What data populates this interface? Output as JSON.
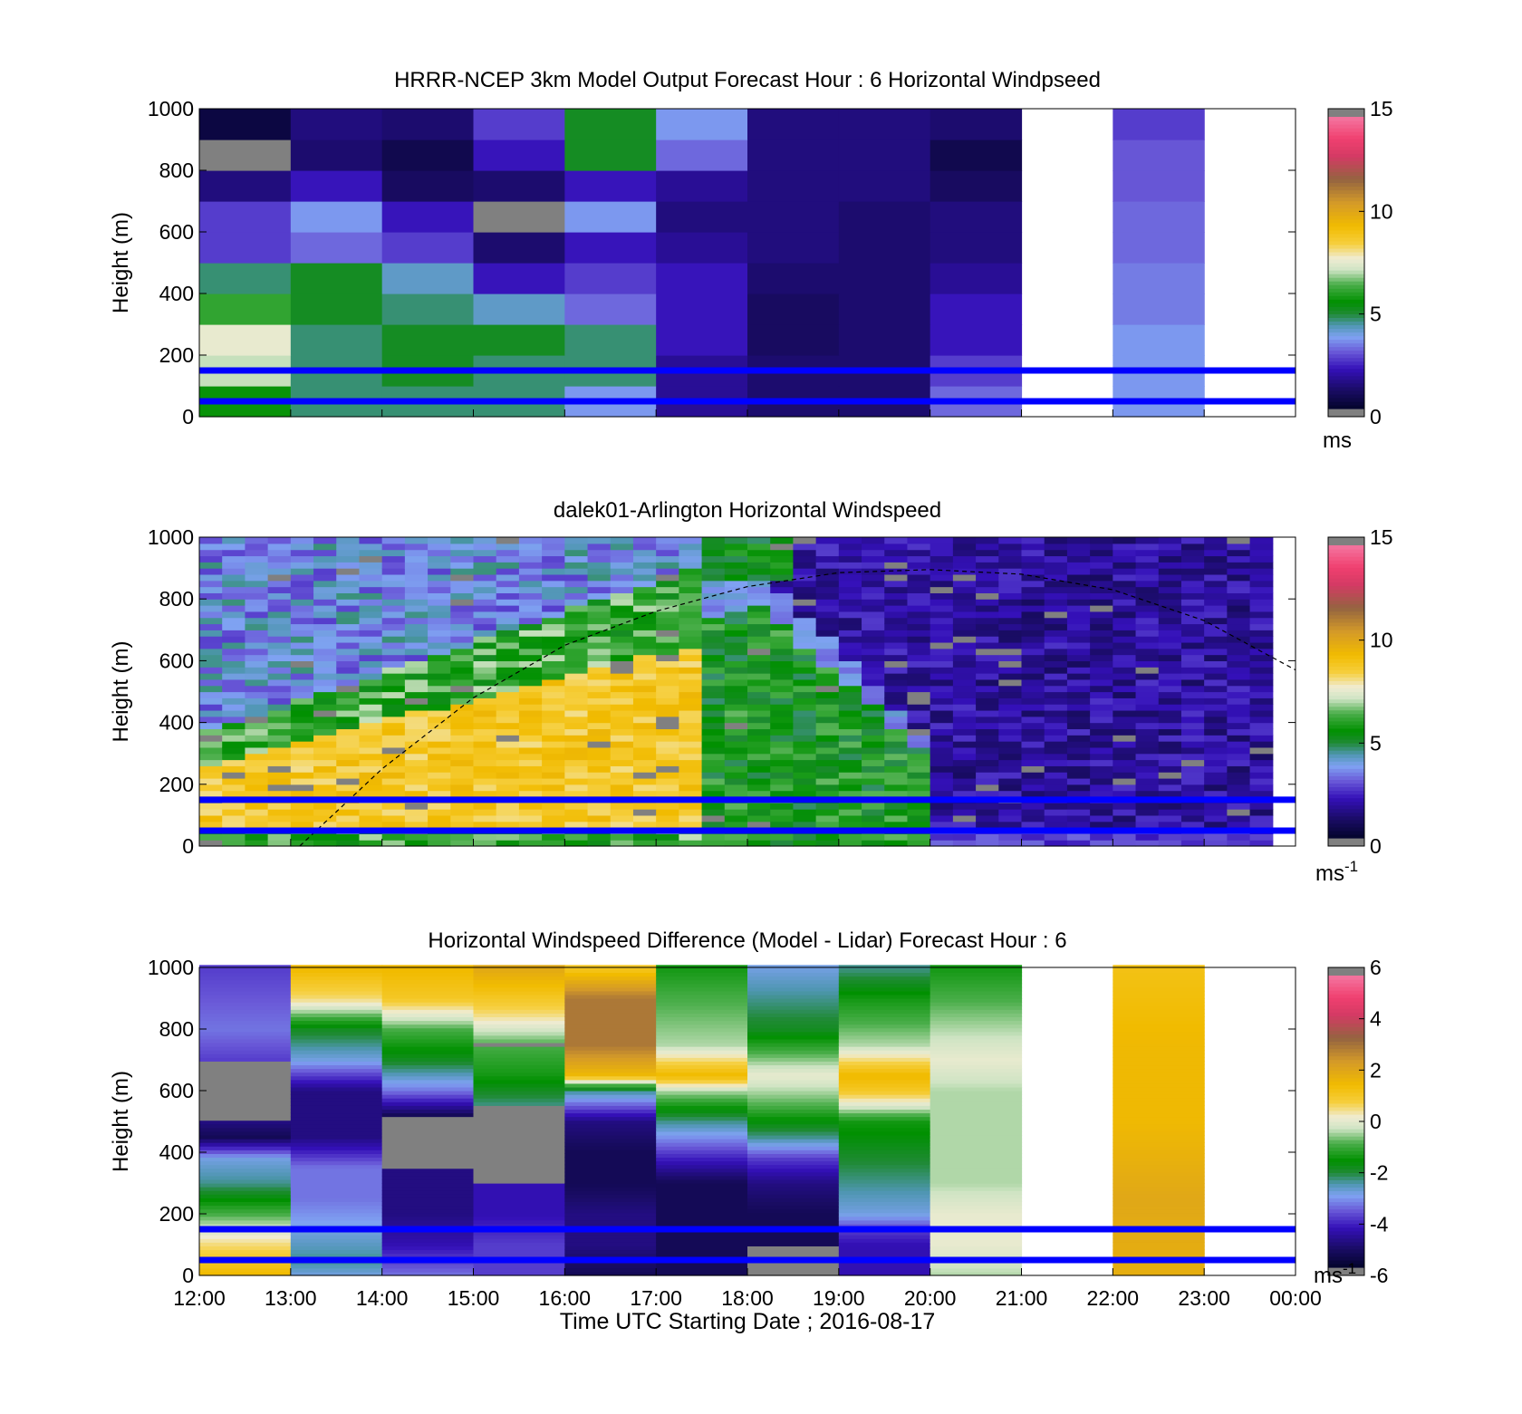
{
  "figure": {
    "x_tick_labels": [
      "12:00",
      "13:00",
      "14:00",
      "15:00",
      "16:00",
      "17:00",
      "18:00",
      "19:00",
      "20:00",
      "21:00",
      "22:00",
      "23:00",
      "00:00"
    ],
    "xlabel": "Time UTC  Starting Date ; 2016-08-17",
    "reference_lines_height_m": [
      50,
      150
    ],
    "colors": {
      "reference_line": "#0000ff",
      "missing_data": "#808080",
      "no_data": "#ffffff"
    }
  },
  "chart_data": [
    {
      "id": "model",
      "type": "heatmap",
      "title": "HRRR-NCEP 3km Model Output   Forecast Hour : 6 Horizontal Windpseed",
      "ylabel": "Height (m)",
      "y_ticks": [
        "0",
        "200",
        "400",
        "600",
        "800",
        "1000"
      ],
      "xlim": [
        "12:00",
        "00:00"
      ],
      "ylim": [
        0,
        1000
      ],
      "colorbar": {
        "unit": "ms",
        "unit_sup": "",
        "ticks": [
          "0",
          "5",
          "10",
          "15"
        ],
        "range": [
          0,
          15
        ]
      },
      "hour_columns": [
        "12:00",
        "13:00",
        "14:00",
        "15:00",
        "16:00",
        "17:00",
        "18:00",
        "19:00",
        "20:00",
        "21:00",
        "22:00",
        "23:00"
      ],
      "cell_height_m": 100,
      "values": [
        [
          5.5,
          4.5,
          4.5,
          4.5,
          3.5,
          1.5,
          1.0,
          1.0,
          3.0,
          null,
          3.5,
          null
        ],
        [
          7.0,
          4.5,
          5.0,
          4.5,
          4.5,
          1.5,
          1.0,
          1.0,
          2.5,
          null,
          3.5,
          null
        ],
        [
          7.5,
          4.5,
          5.0,
          5.0,
          4.5,
          2.0,
          0.8,
          1.0,
          2.0,
          null,
          3.5,
          null
        ],
        [
          6.0,
          5.0,
          4.5,
          4.0,
          3.0,
          2.0,
          0.8,
          1.0,
          2.0,
          null,
          3.2,
          null
        ],
        [
          4.5,
          5.0,
          4.0,
          2.0,
          2.5,
          2.0,
          1.0,
          1.0,
          1.5,
          null,
          3.2,
          null
        ],
        [
          2.5,
          3.0,
          2.5,
          1.0,
          2.0,
          1.5,
          1.2,
          1.0,
          1.2,
          null,
          3.0,
          null
        ],
        [
          2.5,
          3.5,
          2.0,
          -1,
          3.5,
          1.2,
          1.2,
          1.0,
          1.2,
          null,
          3.0,
          null
        ],
        [
          1.2,
          2.0,
          0.8,
          1.0,
          2.0,
          1.5,
          1.2,
          1.2,
          0.8,
          null,
          2.8,
          null
        ],
        [
          -1,
          1.0,
          0.5,
          2.0,
          5.0,
          3.0,
          1.2,
          1.2,
          0.5,
          null,
          2.8,
          null
        ],
        [
          0.3,
          1.2,
          1.0,
          2.5,
          5.0,
          3.5,
          1.2,
          1.2,
          1.0,
          null,
          2.5,
          null
        ]
      ]
    },
    {
      "id": "lidar",
      "type": "heatmap",
      "title": "dalek01-Arlington  Horizontal Windspeed",
      "ylabel": "Height (m)",
      "y_ticks": [
        "0",
        "200",
        "400",
        "600",
        "800",
        "1000"
      ],
      "xlim": [
        "12:00",
        "00:00"
      ],
      "ylim": [
        0,
        1000
      ],
      "colorbar": {
        "unit": "ms",
        "unit_sup": "-1",
        "ticks": [
          "0",
          "5",
          "10",
          "15"
        ],
        "range": [
          0,
          15
        ]
      },
      "approx_sample_interval_min": 15,
      "transition_curve": {
        "style": "dashed",
        "x_hours": [
          13.1,
          14,
          15,
          16,
          17,
          18,
          19,
          20,
          21,
          22,
          23,
          24
        ],
        "y_m": [
          0,
          250,
          480,
          650,
          760,
          840,
          885,
          895,
          880,
          830,
          730,
          570
        ]
      }
    },
    {
      "id": "difference",
      "type": "heatmap",
      "title": "Horizontal Windspeed Difference (Model - Lidar) Forecast Hour : 6",
      "ylabel": "Height (m)",
      "y_ticks": [
        "0",
        "200",
        "400",
        "600",
        "800",
        "1000"
      ],
      "xlim": [
        "12:00",
        "00:00"
      ],
      "ylim": [
        0,
        1000
      ],
      "colorbar": {
        "unit": "ms",
        "unit_sup": "-1",
        "ticks": [
          "-6",
          "-4",
          "-2",
          "0",
          "2",
          "4",
          "6"
        ],
        "range": [
          -6,
          6
        ]
      },
      "hour_columns": [
        "12:00",
        "13:00",
        "14:00",
        "15:00",
        "16:00",
        "17:00",
        "18:00",
        "19:00",
        "20:00",
        "21:00",
        "22:00",
        "23:00"
      ],
      "profiles": [
        {
          "h": [
            0,
            100,
            200,
            300,
            380,
            450,
            500,
            620,
            700,
            800,
            1000
          ],
          "v": [
            1.5,
            0.5,
            -1.0,
            -2.5,
            -3.0,
            -5.5,
            -5.0,
            -9,
            -4.0,
            -3.5,
            -4.0
          ]
        },
        {
          "h": [
            0,
            50,
            150,
            250,
            350,
            450,
            600,
            700,
            800,
            900,
            1000
          ],
          "v": [
            -3.0,
            -2.5,
            -3.0,
            -3.5,
            -3.5,
            -5.0,
            -5.0,
            -3.0,
            -2.0,
            0.5,
            1.5
          ]
        },
        {
          "h": [
            0,
            100,
            200,
            350,
            420,
            520,
            600,
            700,
            800,
            900,
            1000
          ],
          "v": [
            -3.5,
            -4.5,
            -5.0,
            -5.0,
            -9,
            -5.5,
            -3.5,
            -2.0,
            -1.0,
            1.0,
            1.5
          ]
        },
        {
          "h": [
            0,
            100,
            200,
            300,
            450,
            550,
            650,
            750,
            850,
            950,
            1000
          ],
          "v": [
            -4.0,
            -4.0,
            -4.5,
            -4.5,
            -9,
            -2.5,
            -1.5,
            -1.0,
            0.5,
            1.5,
            2.0
          ]
        },
        {
          "h": [
            0,
            100,
            200,
            300,
            400,
            500,
            600,
            650,
            750,
            900,
            1000
          ],
          "v": [
            -5.5,
            -5.0,
            -5.0,
            -5.5,
            -5.5,
            -5.0,
            -2.5,
            1.5,
            3.0,
            3.0,
            1.0
          ]
        },
        {
          "h": [
            0,
            100,
            200,
            300,
            400,
            500,
            600,
            650,
            750,
            900,
            1000
          ],
          "v": [
            -5.5,
            -5.5,
            -5.5,
            -5.5,
            -4.0,
            -2.5,
            -0.5,
            1.5,
            -0.5,
            -1.0,
            -1.5
          ]
        },
        {
          "h": [
            0,
            50,
            100,
            200,
            300,
            380,
            450,
            550,
            650,
            800,
            1000
          ],
          "v": [
            -5.5,
            -9,
            -5.5,
            -5.5,
            -5.0,
            -4.0,
            -2.5,
            -1.0,
            0.0,
            -2.0,
            -3.0
          ]
        },
        {
          "h": [
            0,
            100,
            150,
            200,
            300,
            400,
            500,
            600,
            650,
            750,
            900,
            1000
          ],
          "v": [
            -4.5,
            -4.5,
            -4.0,
            -3.0,
            -2.5,
            -2.0,
            -1.5,
            1.0,
            1.5,
            -0.5,
            -1.5,
            -2.5
          ]
        },
        {
          "h": [
            0,
            100,
            200,
            300,
            400,
            500,
            600,
            700,
            800,
            900,
            1000
          ],
          "v": [
            -0.5,
            0.0,
            0.0,
            -0.5,
            -0.5,
            -0.5,
            -0.5,
            0.0,
            -0.5,
            -1.0,
            -1.5
          ]
        },
        null,
        {
          "h": [
            0,
            250,
            500,
            750,
            1000
          ],
          "v": [
            1.8,
            2.0,
            1.5,
            1.5,
            1.2
          ]
        },
        null
      ]
    }
  ]
}
